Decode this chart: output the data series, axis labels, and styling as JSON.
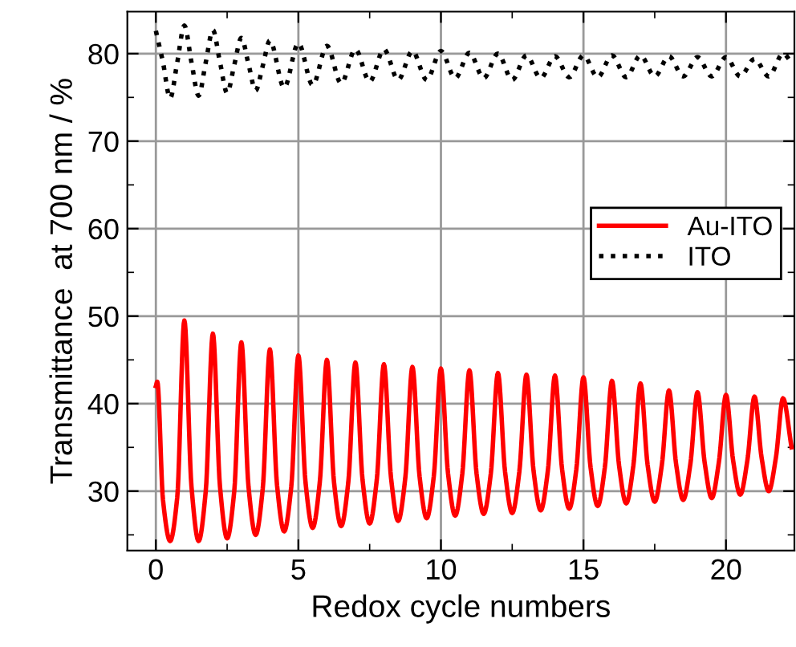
{
  "chart_data": {
    "type": "line",
    "xlabel": "Redox cycle numbers",
    "ylabel": "Transmittance  at 700 nm / %",
    "xlim": [
      -1,
      22.4
    ],
    "ylim": [
      23.2,
      84.8
    ],
    "xticks": [
      0,
      5,
      10,
      15,
      20
    ],
    "yticks": [
      30,
      40,
      50,
      60,
      70,
      80
    ],
    "grid": true,
    "legend": "right",
    "marker": "none",
    "series": [
      {
        "name": "Au-ITO",
        "color": "#ff0000",
        "line_style": "solid",
        "x": [
          0,
          0.05,
          0.25,
          0.5,
          0.75,
          1,
          1.25,
          1.5,
          1.75,
          2,
          2.25,
          2.5,
          2.75,
          3,
          3.25,
          3.5,
          3.75,
          4,
          4.25,
          4.5,
          4.75,
          5,
          5.25,
          5.5,
          5.75,
          6,
          6.25,
          6.5,
          6.75,
          7,
          7.25,
          7.5,
          7.75,
          8,
          8.25,
          8.5,
          8.75,
          9,
          9.25,
          9.5,
          9.75,
          10,
          10.25,
          10.5,
          10.75,
          11,
          11.25,
          11.5,
          11.75,
          12,
          12.25,
          12.5,
          12.75,
          13,
          13.25,
          13.5,
          13.75,
          14,
          14.25,
          14.5,
          14.75,
          15,
          15.25,
          15.5,
          15.75,
          16,
          16.25,
          16.5,
          16.75,
          17,
          17.25,
          17.5,
          17.75,
          18,
          18.25,
          18.5,
          18.75,
          19,
          19.25,
          19.5,
          19.75,
          20,
          20.25,
          20.5,
          20.75,
          21,
          21.25,
          21.5,
          21.75,
          22,
          22.3
        ],
        "values": [
          42,
          42.5,
          29,
          24.3,
          29.3,
          49.5,
          30.5,
          24.3,
          30,
          48,
          30.5,
          24.6,
          30,
          47,
          30.5,
          25,
          30.3,
          46.2,
          30.7,
          25.4,
          30.5,
          45.5,
          31,
          25.8,
          31,
          45,
          31,
          26,
          31,
          44.7,
          31.3,
          26.3,
          31.3,
          44.5,
          31.5,
          26.6,
          31.5,
          44.2,
          31.7,
          26.9,
          31.7,
          44,
          32,
          27.2,
          32,
          43.8,
          32,
          27.4,
          32,
          43.5,
          32.2,
          27.5,
          32.2,
          43.3,
          32.3,
          27.8,
          32.3,
          43.2,
          32.5,
          28,
          32.5,
          43,
          32.7,
          28.3,
          32.7,
          42.6,
          32.9,
          28.6,
          32.9,
          42.3,
          33,
          28.8,
          33,
          41.5,
          33.1,
          29,
          33.1,
          41.3,
          33.3,
          29.2,
          33.3,
          41,
          33.5,
          29.6,
          33.5,
          40.8,
          33.8,
          30,
          33.8,
          40.6,
          35
        ]
      },
      {
        "name": "ITO",
        "color": "#000000",
        "line_style": "dotted",
        "x": [
          0,
          0.25,
          0.5,
          0.75,
          1,
          1.25,
          1.5,
          1.75,
          2,
          2.25,
          2.5,
          2.75,
          3,
          3.25,
          3.5,
          3.75,
          4,
          4.5,
          5,
          5.5,
          6,
          6.5,
          7,
          7.5,
          8,
          8.5,
          9,
          9.5,
          10,
          10.5,
          11,
          11.5,
          12,
          12.5,
          13,
          13.5,
          14,
          14.5,
          15,
          15.5,
          16,
          16.5,
          17,
          17.5,
          18,
          18.5,
          19,
          19.5,
          20,
          20.5,
          21,
          21.5,
          22,
          22.3
        ],
        "values": [
          82.6,
          79,
          74.9,
          79,
          83.2,
          79,
          75.2,
          79,
          82.7,
          79,
          75.5,
          78.7,
          81.8,
          78.8,
          75.8,
          78.6,
          81.5,
          76.1,
          81.2,
          76.4,
          80.9,
          76.6,
          80.5,
          76.8,
          80.5,
          77,
          80.3,
          77,
          80.3,
          77.2,
          80.1,
          77.2,
          80,
          77,
          79.8,
          77.2,
          79.7,
          77.3,
          79.8,
          77.3,
          79.8,
          77.3,
          79.8,
          77.4,
          79.7,
          77.4,
          79.6,
          77.4,
          79.6,
          77.4,
          79.4,
          77.4,
          80,
          79
        ]
      }
    ]
  }
}
